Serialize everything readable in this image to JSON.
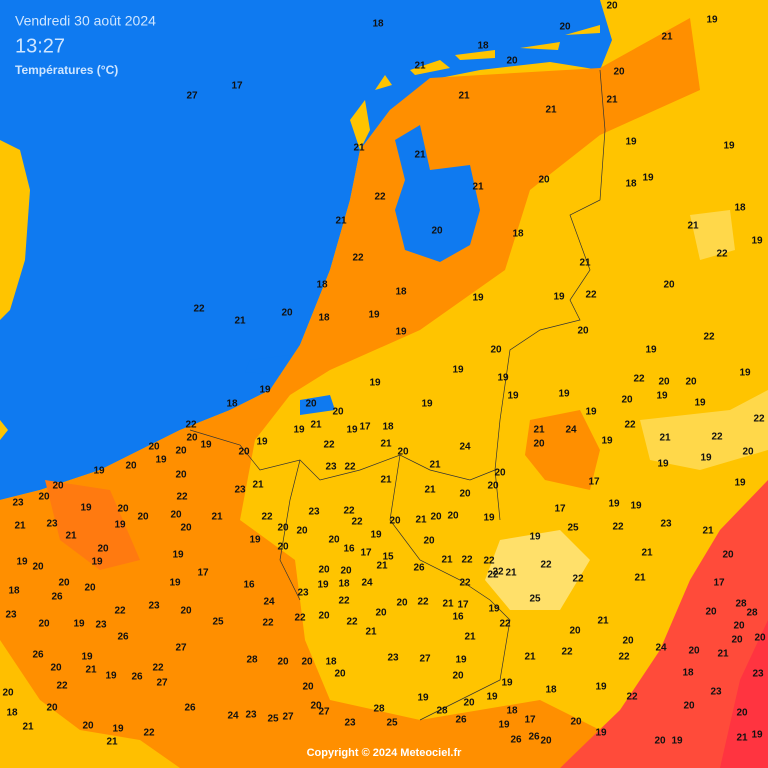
{
  "header": {
    "date": "Vendredi 30 août 2024",
    "time": "13:27",
    "subtitle": "Températures (°C)"
  },
  "stations": [
    18,
    20,
    20,
    19,
    21,
    18,
    20,
    21,
    20,
    27,
    17,
    21,
    21,
    21,
    21,
    21,
    19,
    19,
    21,
    20,
    18,
    19,
    22,
    21,
    18,
    21,
    20,
    18,
    22,
    19,
    22,
    21,
    20,
    18,
    18,
    19,
    19,
    22,
    22,
    21,
    20,
    18,
    19,
    19,
    20,
    22,
    20,
    19,
    19,
    19,
    19,
    19,
    19,
    22,
    20,
    20,
    18,
    20,
    19,
    19,
    19,
    19,
    20,
    19,
    19,
    19,
    21,
    20,
    19,
    17,
    18,
    21,
    24,
    22,
    21,
    22,
    22,
    22,
    20,
    19,
    20,
    19,
    20,
    20,
    19,
    22,
    21,
    24,
    20,
    19,
    20,
    19,
    20,
    20,
    22,
    23,
    20,
    21,
    20,
    19,
    19,
    20,
    20,
    23,
    22,
    23,
    21,
    21,
    21,
    20,
    20,
    17,
    19,
    19,
    20,
    19,
    20,
    20,
    21,
    22,
    23,
    22,
    22,
    20,
    21,
    20,
    20,
    19,
    17,
    19,
    19,
    21,
    23,
    21,
    20,
    20,
    20,
    20,
    19,
    20,
    19,
    25,
    22,
    23,
    21,
    20,
    19,
    19,
    20,
    16,
    17,
    15,
    21,
    22,
    22,
    21,
    20,
    19,
    20,
    19,
    20,
    20,
    21,
    26,
    22,
    22,
    21,
    21,
    20,
    20,
    19,
    17,
    16,
    19,
    18,
    24,
    22,
    22,
    22,
    17,
    18,
    26,
    24,
    23,
    22,
    20,
    22,
    21,
    17,
    19,
    25,
    28,
    28,
    23,
    23,
    20,
    22,
    22,
    20,
    20,
    16,
    21,
    20,
    20,
    19,
    23,
    26,
    25,
    22,
    22,
    21,
    21,
    22,
    20,
    20,
    20,
    20,
    24,
    26,
    19,
    27,
    28,
    20,
    20,
    18,
    23,
    27,
    19,
    20,
    21,
    22,
    22,
    20,
    20,
    21,
    20,
    21,
    19,
    22,
    22,
    26,
    27,
    20,
    20,
    19,
    18,
    19,
    18,
    23,
    20,
    20,
    19,
    22,
    23,
    26,
    24,
    23,
    27,
    27,
    28,
    28,
    20,
    19,
    18,
    17,
    20,
    20,
    20,
    18,
    20,
    21,
    20,
    19,
    21,
    22,
    25,
    23,
    25,
    26,
    19,
    26,
    26,
    20,
    19,
    20,
    19,
    21,
    19
  ],
  "copyright": "Copyright © 2024 Meteociel.fr"
}
